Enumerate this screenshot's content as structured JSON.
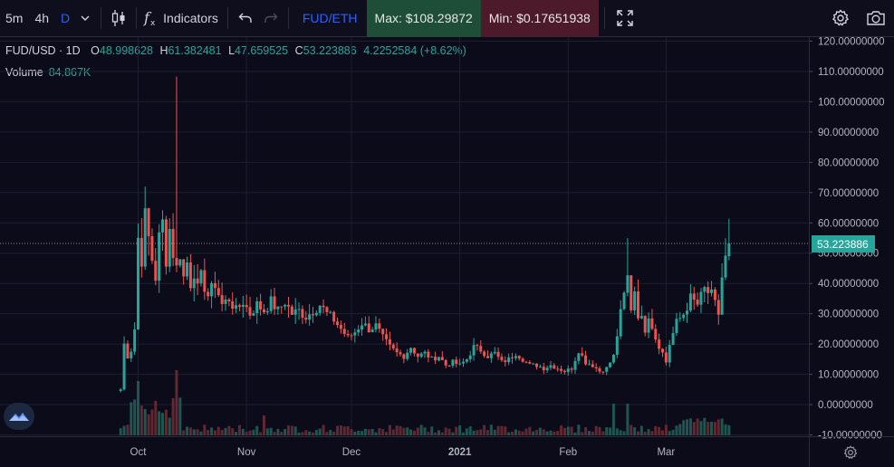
{
  "toolbar": {
    "intervals": [
      {
        "label": "5m",
        "active": false
      },
      {
        "label": "4h",
        "active": false
      },
      {
        "label": "D",
        "active": true
      }
    ],
    "indicators_label": "Indicators",
    "pair": "FUD/ETH",
    "max_label": "Max: $108.29872",
    "min_label": "Min: $0.17651938"
  },
  "legend": {
    "symbol": "FUD/USD · 1D",
    "open_label": "O",
    "open": "48.998628",
    "high_label": "H",
    "high": "61.382481",
    "low_label": "L",
    "low": "47.659525",
    "close_label": "C",
    "close": "53.223886",
    "change": "4.2252584 (+8.62%)"
  },
  "volume": {
    "label": "Volume",
    "value": "84.867K"
  },
  "price_tag": "53.223886",
  "colors": {
    "up": "#26a69a",
    "down": "#ef5350",
    "background": "#0b0b1a",
    "grid": "#1d2030"
  },
  "icons": {
    "chevron": "chevron-down-icon",
    "candles": "candlestick-icon",
    "indicators": "fx-icon",
    "undo": "undo-icon",
    "redo": "redo-icon",
    "fullscreen": "fullscreen-icon",
    "settings": "gear-icon",
    "snapshot": "camera-icon",
    "logo": "tradingview-logo-icon"
  },
  "chart_data": {
    "type": "candlestick",
    "x_ticks": [
      {
        "label": "Oct",
        "day": 0
      },
      {
        "label": "Nov",
        "day": 31
      },
      {
        "label": "Dec",
        "day": 61
      },
      {
        "label": "2021",
        "day": 92,
        "bold": true
      },
      {
        "label": "Feb",
        "day": 123
      },
      {
        "label": "Mar",
        "day": 151
      }
    ],
    "y_ticks": [
      "120.00000000",
      "110.00000000",
      "100.00000000",
      "90.00000000",
      "80.00000000",
      "70.00000000",
      "60.00000000",
      "50.00000000",
      "40.00000000",
      "30.00000000",
      "20.00000000",
      "10.00000000",
      "0.00000000",
      "-10.00000000"
    ],
    "y_range": [
      -10,
      120
    ],
    "last_price": 53.22,
    "keypoints": [
      [
        -5,
        5
      ],
      [
        -4,
        20
      ],
      [
        -3,
        16
      ],
      [
        -2,
        18
      ],
      [
        -1,
        25
      ],
      [
        0,
        55
      ],
      [
        1,
        48
      ],
      [
        2,
        62
      ],
      [
        3,
        55
      ],
      [
        4,
        48
      ],
      [
        5,
        42
      ],
      [
        6,
        55
      ],
      [
        7,
        60
      ],
      [
        8,
        48
      ],
      [
        9,
        58
      ],
      [
        10,
        50
      ],
      [
        11,
        45
      ],
      [
        12,
        50
      ],
      [
        13,
        42
      ],
      [
        14,
        47
      ],
      [
        15,
        40
      ],
      [
        16,
        44
      ],
      [
        17,
        38
      ],
      [
        18,
        42
      ],
      [
        20,
        36
      ],
      [
        22,
        40
      ],
      [
        24,
        33
      ],
      [
        26,
        35
      ],
      [
        28,
        31
      ],
      [
        30,
        34
      ],
      [
        32,
        30
      ],
      [
        34,
        33
      ],
      [
        36,
        31
      ],
      [
        38,
        34
      ],
      [
        40,
        31
      ],
      [
        42,
        34
      ],
      [
        44,
        30
      ],
      [
        46,
        31
      ],
      [
        48,
        29
      ],
      [
        50,
        31
      ],
      [
        52,
        33
      ],
      [
        54,
        30
      ],
      [
        56,
        28
      ],
      [
        58,
        25
      ],
      [
        60,
        22
      ],
      [
        62,
        24
      ],
      [
        64,
        27
      ],
      [
        66,
        25
      ],
      [
        68,
        26
      ],
      [
        70,
        22
      ],
      [
        72,
        19
      ],
      [
        74,
        17
      ],
      [
        76,
        16
      ],
      [
        78,
        19
      ],
      [
        80,
        16
      ],
      [
        82,
        17
      ],
      [
        84,
        15
      ],
      [
        86,
        16
      ],
      [
        88,
        13
      ],
      [
        90,
        14
      ],
      [
        92,
        13
      ],
      [
        94,
        15
      ],
      [
        96,
        19
      ],
      [
        98,
        18
      ],
      [
        100,
        16
      ],
      [
        102,
        17
      ],
      [
        104,
        14
      ],
      [
        106,
        15
      ],
      [
        108,
        17
      ],
      [
        110,
        15
      ],
      [
        112,
        13
      ],
      [
        114,
        13
      ],
      [
        116,
        12
      ],
      [
        118,
        13
      ],
      [
        120,
        12
      ],
      [
        122,
        11
      ],
      [
        124,
        12
      ],
      [
        126,
        18
      ],
      [
        128,
        14
      ],
      [
        130,
        13
      ],
      [
        132,
        11
      ],
      [
        134,
        12
      ],
      [
        136,
        16
      ],
      [
        138,
        30
      ],
      [
        140,
        42
      ],
      [
        141,
        32
      ],
      [
        142,
        38
      ],
      [
        143,
        30
      ],
      [
        144,
        28
      ],
      [
        145,
        25
      ],
      [
        146,
        30
      ],
      [
        148,
        22
      ],
      [
        150,
        17
      ],
      [
        151,
        14
      ],
      [
        152,
        20
      ],
      [
        154,
        27
      ],
      [
        156,
        30
      ],
      [
        158,
        35
      ],
      [
        160,
        33
      ],
      [
        162,
        38
      ],
      [
        164,
        36
      ],
      [
        166,
        30
      ],
      [
        167,
        42
      ],
      [
        168,
        48
      ],
      [
        169,
        53.22
      ]
    ]
  }
}
